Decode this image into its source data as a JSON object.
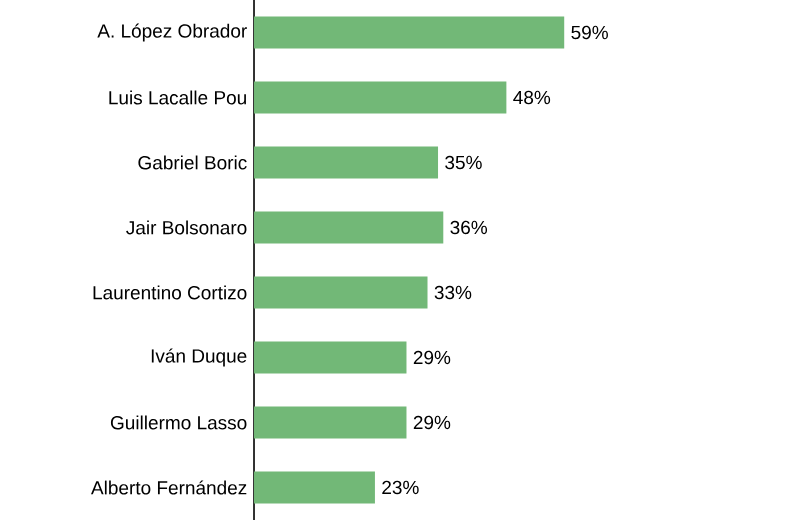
{
  "chart_data": {
    "type": "bar",
    "orientation": "horizontal",
    "categories": [
      "A. López Obrador",
      "Luis Lacalle Pou",
      "Gabriel Boric",
      "Jair Bolsonaro",
      "Laurentino Cortizo",
      "Iván Duque",
      "Guillermo Lasso",
      "Alberto Fernández"
    ],
    "values": [
      59,
      48,
      35,
      36,
      33,
      29,
      29,
      23
    ],
    "value_labels": [
      "59%",
      "48%",
      "35%",
      "36%",
      "33%",
      "29%",
      "29%",
      "23%"
    ],
    "color": "#72b877"
  }
}
